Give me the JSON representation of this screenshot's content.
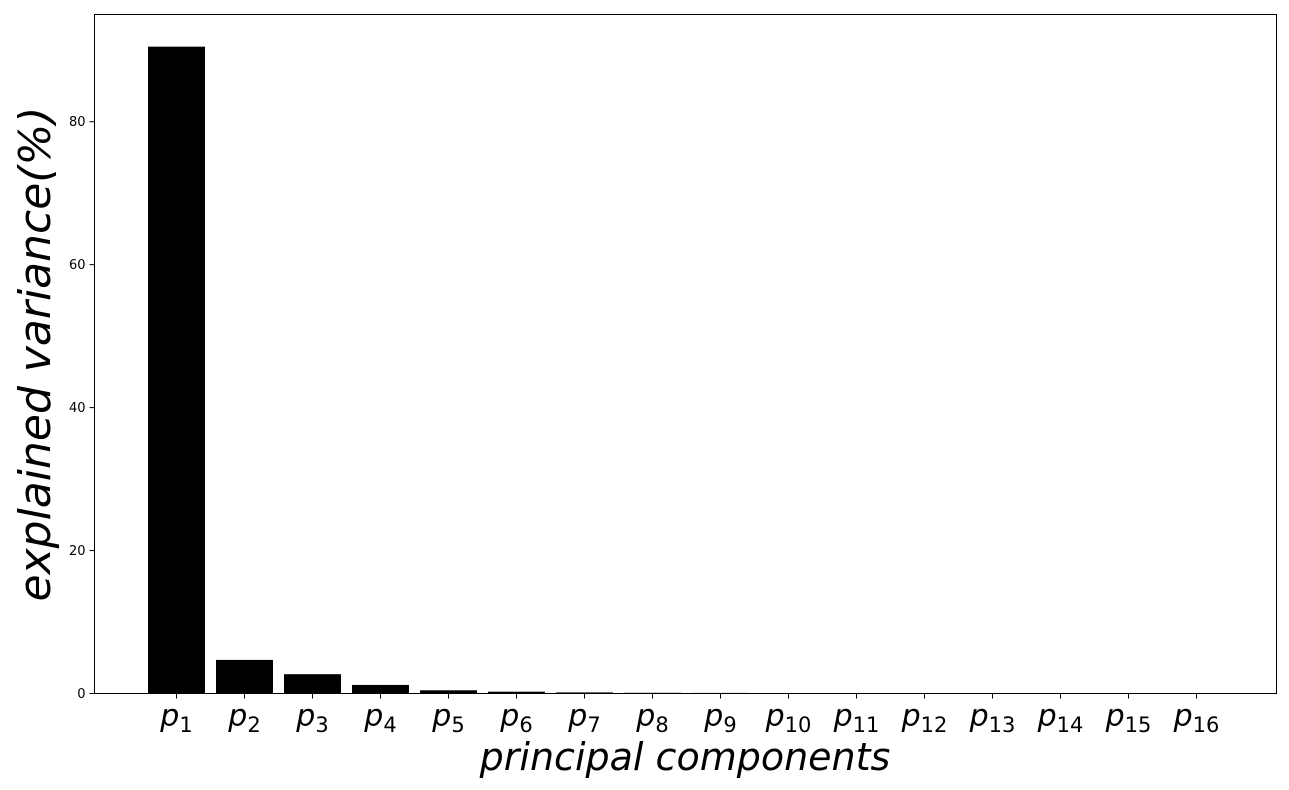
{
  "chart_data": {
    "type": "bar",
    "title": "",
    "xlabel": "principal components",
    "ylabel": "explained variance(%)",
    "categories": [
      {
        "base": "p",
        "sub": "1"
      },
      {
        "base": "p",
        "sub": "2"
      },
      {
        "base": "p",
        "sub": "3"
      },
      {
        "base": "p",
        "sub": "4"
      },
      {
        "base": "p",
        "sub": "5"
      },
      {
        "base": "p",
        "sub": "6"
      },
      {
        "base": "p",
        "sub": "7"
      },
      {
        "base": "p",
        "sub": "8"
      },
      {
        "base": "p",
        "sub": "9"
      },
      {
        "base": "p",
        "sub": "10"
      },
      {
        "base": "p",
        "sub": "11"
      },
      {
        "base": "p",
        "sub": "12"
      },
      {
        "base": "p",
        "sub": "13"
      },
      {
        "base": "p",
        "sub": "14"
      },
      {
        "base": "p",
        "sub": "15"
      },
      {
        "base": "p",
        "sub": "16"
      }
    ],
    "values": [
      90.5,
      4.7,
      2.7,
      1.2,
      0.45,
      0.25,
      0.15,
      0.1,
      0.08,
      0.03,
      0.02,
      0.015,
      0.01,
      0.005,
      0.004,
      0.003
    ],
    "ylim": [
      0,
      95
    ],
    "yticks": [
      0,
      20,
      40,
      60,
      80
    ],
    "bar_color": "#000000",
    "grid": false,
    "legend": "none"
  }
}
